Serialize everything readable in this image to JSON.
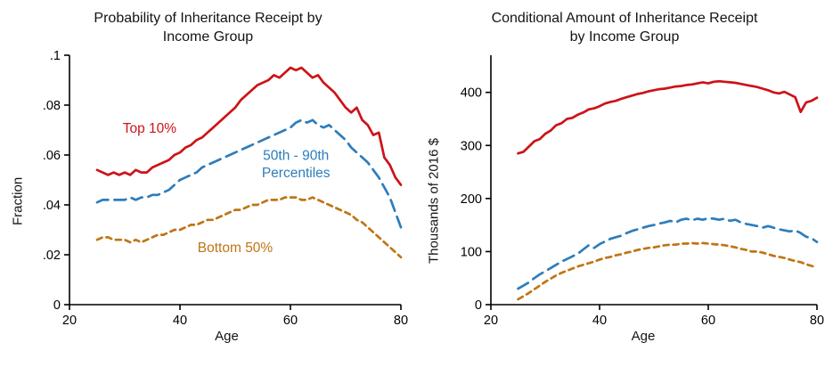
{
  "page": {
    "background": "#ffffff"
  },
  "chart_data": [
    {
      "type": "line",
      "title": "Probability of Inheritance Receipt by Income Group",
      "xlabel": "Age",
      "ylabel": "Fraction",
      "xlim": [
        20,
        80
      ],
      "ylim": [
        0,
        0.1
      ],
      "xticks": [
        20,
        40,
        60,
        80
      ],
      "yticks": [
        0,
        0.02,
        0.04,
        0.06,
        0.08,
        0.1
      ],
      "ytick_labels": [
        "0",
        ".02",
        ".04",
        ".06",
        ".08",
        ".1"
      ],
      "legend_position": "inline-annotations",
      "grid": false,
      "x": [
        25,
        26,
        27,
        28,
        29,
        30,
        31,
        32,
        33,
        34,
        35,
        36,
        37,
        38,
        39,
        40,
        41,
        42,
        43,
        44,
        45,
        46,
        47,
        48,
        49,
        50,
        51,
        52,
        53,
        54,
        55,
        56,
        57,
        58,
        59,
        60,
        61,
        62,
        63,
        64,
        65,
        66,
        67,
        68,
        69,
        70,
        71,
        72,
        73,
        74,
        75,
        76,
        77,
        78,
        79,
        80
      ],
      "series": [
        {
          "name": "Top 10%",
          "color": "#cc1318",
          "dash": "solid",
          "values": [
            0.054,
            0.053,
            0.052,
            0.053,
            0.052,
            0.053,
            0.052,
            0.054,
            0.053,
            0.053,
            0.055,
            0.056,
            0.057,
            0.058,
            0.06,
            0.061,
            0.063,
            0.064,
            0.066,
            0.067,
            0.069,
            0.071,
            0.073,
            0.075,
            0.077,
            0.079,
            0.082,
            0.084,
            0.086,
            0.088,
            0.089,
            0.09,
            0.092,
            0.091,
            0.093,
            0.095,
            0.094,
            0.095,
            0.093,
            0.091,
            0.092,
            0.089,
            0.087,
            0.085,
            0.082,
            0.079,
            0.077,
            0.079,
            0.074,
            0.072,
            0.068,
            0.069,
            0.059,
            0.056,
            0.051,
            0.048
          ]
        },
        {
          "name": "50th - 90th Percentiles",
          "color": "#2d7dbb",
          "dash": "long-dash",
          "values": [
            0.041,
            0.042,
            0.042,
            0.042,
            0.042,
            0.042,
            0.043,
            0.042,
            0.043,
            0.043,
            0.044,
            0.044,
            0.045,
            0.046,
            0.048,
            0.05,
            0.051,
            0.052,
            0.053,
            0.055,
            0.056,
            0.057,
            0.058,
            0.059,
            0.06,
            0.061,
            0.062,
            0.063,
            0.064,
            0.065,
            0.066,
            0.067,
            0.068,
            0.069,
            0.07,
            0.071,
            0.073,
            0.074,
            0.073,
            0.074,
            0.072,
            0.071,
            0.072,
            0.07,
            0.068,
            0.066,
            0.063,
            0.061,
            0.059,
            0.057,
            0.054,
            0.051,
            0.047,
            0.043,
            0.037,
            0.031
          ]
        },
        {
          "name": "Bottom 50%",
          "color": "#bf7514",
          "dash": "short-dash",
          "values": [
            0.026,
            0.027,
            0.027,
            0.026,
            0.026,
            0.026,
            0.025,
            0.026,
            0.025,
            0.026,
            0.027,
            0.028,
            0.028,
            0.029,
            0.03,
            0.03,
            0.031,
            0.032,
            0.032,
            0.033,
            0.034,
            0.034,
            0.035,
            0.036,
            0.037,
            0.038,
            0.038,
            0.039,
            0.04,
            0.04,
            0.041,
            0.042,
            0.042,
            0.042,
            0.043,
            0.043,
            0.043,
            0.042,
            0.042,
            0.043,
            0.042,
            0.041,
            0.04,
            0.039,
            0.038,
            0.037,
            0.036,
            0.034,
            0.033,
            0.031,
            0.029,
            0.027,
            0.025,
            0.023,
            0.021,
            0.019
          ]
        }
      ],
      "annotations": [
        {
          "text": "Top 10%",
          "x": 34.5,
          "y": 0.069,
          "color": "#cc1318"
        },
        {
          "text": "50th - 90th\nPercentiles",
          "x": 61,
          "y": 0.058,
          "color": "#2d7dbb"
        },
        {
          "text": "Bottom 50%",
          "x": 50,
          "y": 0.021,
          "color": "#bf7514"
        }
      ]
    },
    {
      "type": "line",
      "title": "Conditional Amount of Inheritance Receipt by Income Group",
      "xlabel": "Age",
      "ylabel": "Thousands of 2016 $",
      "xlim": [
        20,
        80
      ],
      "ylim": [
        0,
        470
      ],
      "xticks": [
        20,
        40,
        60,
        80
      ],
      "yticks": [
        0,
        100,
        200,
        300,
        400
      ],
      "ytick_labels": [
        "0",
        "100",
        "200",
        "300",
        "400"
      ],
      "legend_position": "none",
      "grid": false,
      "x": [
        25,
        26,
        27,
        28,
        29,
        30,
        31,
        32,
        33,
        34,
        35,
        36,
        37,
        38,
        39,
        40,
        41,
        42,
        43,
        44,
        45,
        46,
        47,
        48,
        49,
        50,
        51,
        52,
        53,
        54,
        55,
        56,
        57,
        58,
        59,
        60,
        61,
        62,
        63,
        64,
        65,
        66,
        67,
        68,
        69,
        70,
        71,
        72,
        73,
        74,
        75,
        76,
        77,
        78,
        79,
        80
      ],
      "series": [
        {
          "name": "Top 10%",
          "color": "#cc1318",
          "dash": "solid",
          "values": [
            285,
            288,
            298,
            308,
            312,
            322,
            328,
            338,
            342,
            350,
            352,
            358,
            362,
            368,
            370,
            374,
            379,
            382,
            384,
            388,
            391,
            394,
            397,
            399,
            402,
            404,
            406,
            407,
            409,
            411,
            412,
            414,
            415,
            417,
            419,
            417,
            420,
            421,
            420,
            419,
            418,
            416,
            414,
            412,
            410,
            407,
            404,
            400,
            398,
            401,
            396,
            391,
            363,
            381,
            384,
            390
          ]
        },
        {
          "name": "50th - 90th Percentiles",
          "color": "#2d7dbb",
          "dash": "long-dash",
          "values": [
            30,
            36,
            42,
            50,
            57,
            63,
            69,
            75,
            81,
            86,
            91,
            96,
            104,
            112,
            107,
            114,
            119,
            124,
            127,
            130,
            135,
            139,
            142,
            145,
            148,
            150,
            153,
            155,
            158,
            155,
            160,
            162,
            159,
            162,
            160,
            163,
            162,
            160,
            162,
            158,
            160,
            155,
            152,
            150,
            148,
            145,
            148,
            145,
            142,
            140,
            138,
            140,
            135,
            128,
            125,
            118
          ]
        },
        {
          "name": "Bottom 50%",
          "color": "#bf7514",
          "dash": "short-dash",
          "values": [
            10,
            16,
            22,
            29,
            36,
            43,
            49,
            55,
            60,
            64,
            68,
            72,
            75,
            78,
            81,
            85,
            88,
            90,
            93,
            95,
            98,
            100,
            103,
            105,
            107,
            108,
            110,
            112,
            113,
            113,
            115,
            115,
            116,
            115,
            116,
            115,
            114,
            113,
            112,
            110,
            108,
            105,
            103,
            100,
            100,
            98,
            95,
            92,
            90,
            88,
            85,
            82,
            80,
            76,
            73,
            70
          ]
        }
      ],
      "annotations": []
    }
  ]
}
